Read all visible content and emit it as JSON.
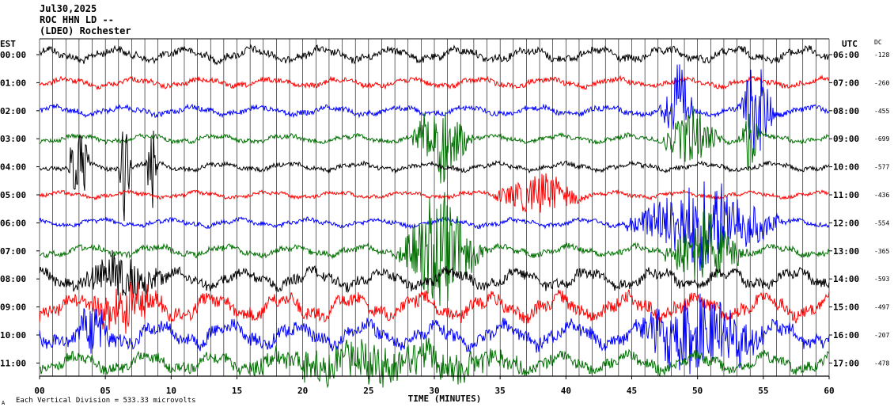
{
  "header": {
    "date": "Jul30,2025",
    "station": "ROC HHN LD --",
    "network": "(LDEO) Rochester"
  },
  "footer": {
    "scale_text": "Each Vertical Division = 533.33 microvolts",
    "corner_mark": "A"
  },
  "chart_data": {
    "type": "line",
    "title": "",
    "xlabel": "TIME (MINUTES)",
    "left_axis_label": "EST",
    "right_axis_label": "UTC",
    "dc_label": "DC",
    "xlim": [
      0,
      60
    ],
    "x_ticks": [
      0,
      5,
      10,
      15,
      20,
      25,
      30,
      35,
      40,
      45,
      50,
      55,
      60
    ],
    "x_tick_labels": [
      "00",
      "05",
      "10",
      "15",
      "20",
      "25",
      "30",
      "35",
      "40",
      "45",
      "50",
      "55",
      "60"
    ],
    "grid": true,
    "series_colors": [
      "#000000",
      "#ff0000",
      "#0000ff",
      "#007000"
    ],
    "rows": [
      {
        "est": "00:00",
        "utc": "06:00",
        "dc": "-128",
        "color": "#000000",
        "amplitude": 10,
        "bursts": []
      },
      {
        "est": "01:00",
        "utc": "07:00",
        "dc": "-260",
        "color": "#ff0000",
        "amplitude": 7,
        "bursts": []
      },
      {
        "est": "02:00",
        "utc": "08:00",
        "dc": "-455",
        "color": "#0000ff",
        "amplitude": 7,
        "bursts": [
          [
            47,
            50,
            60
          ],
          [
            53,
            56,
            70
          ]
        ]
      },
      {
        "est": "03:00",
        "utc": "09:00",
        "dc": "-699",
        "color": "#007000",
        "amplitude": 6,
        "bursts": [
          [
            28,
            33,
            60
          ],
          [
            47,
            52,
            40
          ],
          [
            53,
            55,
            50
          ]
        ]
      },
      {
        "est": "04:00",
        "utc": "10:00",
        "dc": "-577",
        "color": "#000000",
        "amplitude": 6,
        "bursts": [
          [
            2,
            4,
            60
          ],
          [
            6,
            7,
            80
          ],
          [
            8,
            9,
            70
          ]
        ]
      },
      {
        "est": "05:00",
        "utc": "11:00",
        "dc": "-436",
        "color": "#ff0000",
        "amplitude": 5,
        "bursts": [
          [
            34,
            42,
            30
          ]
        ]
      },
      {
        "est": "06:00",
        "utc": "12:00",
        "dc": "-554",
        "color": "#0000ff",
        "amplitude": 6,
        "bursts": [
          [
            44,
            57,
            60
          ]
        ]
      },
      {
        "est": "07:00",
        "utc": "13:00",
        "dc": "-365",
        "color": "#007000",
        "amplitude": 8,
        "bursts": [
          [
            27,
            34,
            80
          ],
          [
            47,
            54,
            50
          ]
        ]
      },
      {
        "est": "08:00",
        "utc": "14:00",
        "dc": "-593",
        "color": "#000000",
        "amplitude": 14,
        "bursts": [
          [
            2,
            10,
            30
          ]
        ]
      },
      {
        "est": "09:00",
        "utc": "15:00",
        "dc": "-497",
        "color": "#ff0000",
        "amplitude": 18,
        "bursts": [
          [
            3,
            10,
            30
          ]
        ]
      },
      {
        "est": "10:00",
        "utc": "16:00",
        "dc": "-207",
        "color": "#0000ff",
        "amplitude": 18,
        "bursts": [
          [
            2,
            6,
            30
          ],
          [
            44,
            56,
            50
          ]
        ]
      },
      {
        "est": "11:00",
        "utc": "17:00",
        "dc": "-478",
        "color": "#007000",
        "amplitude": 14,
        "bursts": [
          [
            12,
            40,
            25
          ]
        ]
      }
    ]
  }
}
